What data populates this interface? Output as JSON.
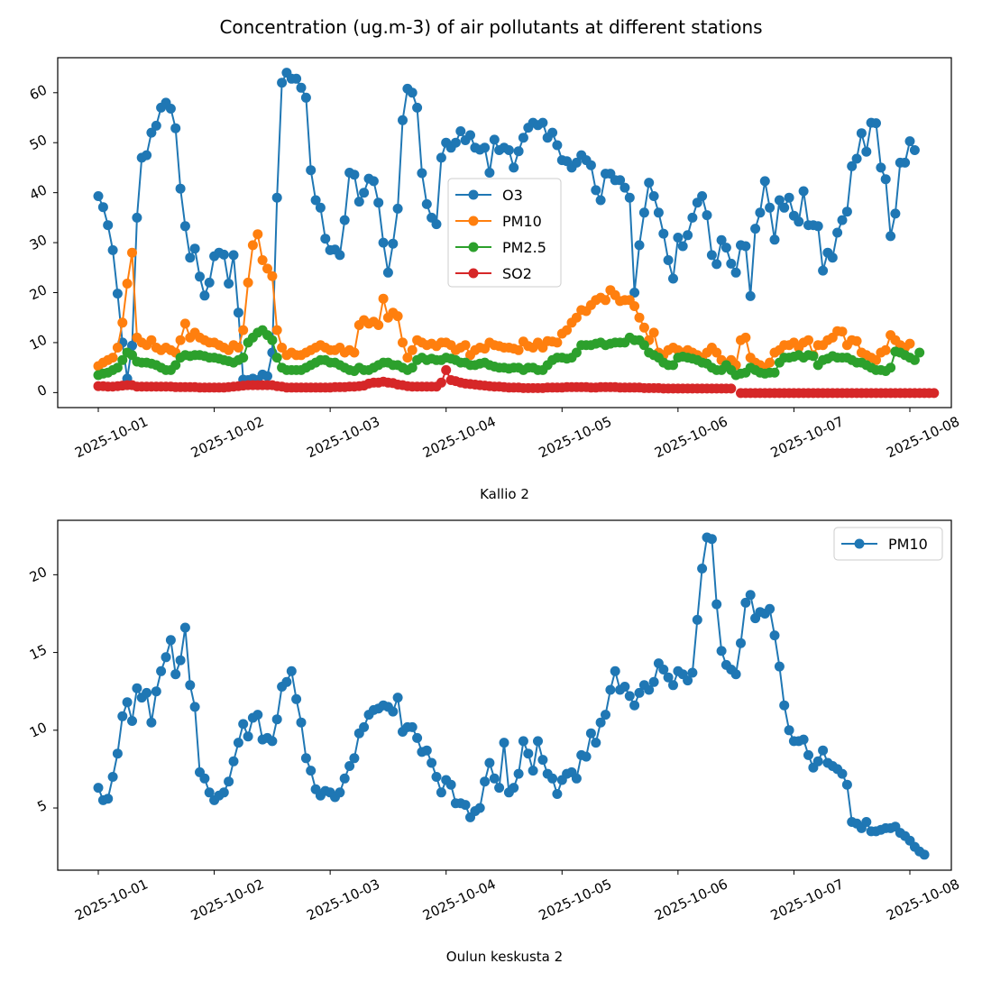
{
  "title": "Concentration (ug.m-3) of air pollutants at different stations",
  "chart_data": [
    {
      "type": "line",
      "xlabel": "Kallio 2",
      "ylabel": "",
      "x_start": "2025-10-01",
      "x_end": "2025-10-08",
      "x_ticks": [
        "2025-10-01",
        "2025-10-02",
        "2025-10-03",
        "2025-10-04",
        "2025-10-05",
        "2025-10-06",
        "2025-10-07",
        "2025-10-08"
      ],
      "y_ticks": [
        "0",
        "10",
        "20",
        "30",
        "40",
        "50",
        "60"
      ],
      "ylim": [
        -3,
        67
      ],
      "legend_position": "center",
      "series": [
        {
          "name": "O3",
          "color": "#1f77b4",
          "step_hours": 1,
          "values": [
            39.3,
            37.1,
            33.5,
            28.5,
            19.8,
            10.0,
            2.8,
            9.4,
            35.0,
            47.0,
            47.5,
            52.0,
            53.4,
            57.0,
            58.0,
            56.8,
            52.9,
            40.8,
            33.3,
            27.0,
            28.8,
            23.2,
            19.4,
            22.0,
            27.3,
            28.0,
            27.6,
            21.8,
            27.5,
            16.0,
            2.6,
            2.5,
            2.8,
            2.5,
            3.6,
            3.3,
            8.0,
            39.0,
            62.0,
            64.0,
            62.8,
            62.8,
            61.0,
            59.0,
            44.5,
            38.5,
            37.0,
            30.8,
            28.5,
            28.6,
            27.5,
            34.5,
            44.0,
            43.6,
            38.2,
            40.0,
            42.8,
            42.3,
            38.0,
            30.0,
            24.0,
            29.8,
            36.8,
            54.5,
            60.8,
            60.0,
            57.0,
            43.9,
            37.7,
            35.0,
            33.7,
            47.0,
            50.0,
            49.0,
            50.0,
            52.3,
            50.5,
            51.5,
            49.0,
            48.6,
            49.0,
            44.0,
            50.6,
            48.5,
            49.0,
            48.5,
            45.0,
            48.3,
            51.0,
            53.0,
            54.0,
            53.5,
            54.0,
            51.0,
            52.0,
            49.5,
            46.5,
            46.3,
            45.0,
            46.0,
            47.5,
            46.5,
            45.5,
            40.5,
            38.5,
            43.8,
            43.8,
            42.5,
            42.5,
            41.0,
            39.0,
            20.0,
            29.5,
            36.0,
            42.0,
            39.3,
            36.0,
            31.8,
            26.5,
            22.8,
            31.0,
            29.3,
            31.5,
            35.0,
            38.0,
            39.3,
            35.5,
            27.5,
            25.7,
            30.5,
            29.0,
            25.8,
            24.0,
            29.5,
            29.3,
            19.3,
            32.8,
            36.0,
            42.3,
            37.0,
            30.6,
            38.5,
            37.0,
            39.0,
            35.4,
            34.2,
            40.3,
            33.5,
            33.5,
            33.3,
            24.4,
            28.0,
            27.0,
            32.0,
            34.5,
            36.2,
            45.3,
            46.8,
            51.9,
            48.2,
            54.0,
            53.9,
            45.0,
            42.7,
            31.3,
            35.8,
            46.0,
            46.0,
            50.3,
            48.5
          ]
        },
        {
          "name": "PM10",
          "color": "#ff7f0e",
          "step_hours": 1,
          "values": [
            5.3,
            6.0,
            6.5,
            7.0,
            9.0,
            14.0,
            21.8,
            28.0,
            11.0,
            10.0,
            9.5,
            10.5,
            9.0,
            8.5,
            9.0,
            8.5,
            8.0,
            10.5,
            13.8,
            11.0,
            12.0,
            11.0,
            10.5,
            10.0,
            10.0,
            9.5,
            9.0,
            8.5,
            9.5,
            9.0,
            12.5,
            22.0,
            29.5,
            31.7,
            26.5,
            24.8,
            23.3,
            12.5,
            9.0,
            7.5,
            8.0,
            7.5,
            7.5,
            8.0,
            8.5,
            9.0,
            9.5,
            9.0,
            8.5,
            8.5,
            9.0,
            8.0,
            8.5,
            8.0,
            13.5,
            14.5,
            13.8,
            14.2,
            13.5,
            18.8,
            15.0,
            16.0,
            15.3,
            10.0,
            7.0,
            8.5,
            10.5,
            10.0,
            9.5,
            9.8,
            9.3,
            10.0,
            10.0,
            9.5,
            8.5,
            9.0,
            9.5,
            7.5,
            8.5,
            9.0,
            8.8,
            10.0,
            9.5,
            9.3,
            9.0,
            9.0,
            8.8,
            8.5,
            10.2,
            9.3,
            9.0,
            10.0,
            9.0,
            10.3,
            10.2,
            10.0,
            11.8,
            12.5,
            14.0,
            15.0,
            16.5,
            16.3,
            17.5,
            18.5,
            19.0,
            18.5,
            20.5,
            19.5,
            18.3,
            18.5,
            18.5,
            17.3,
            15.0,
            13.0,
            10.5,
            12.0,
            8.0,
            7.5,
            8.5,
            9.0,
            8.5,
            8.0,
            8.5,
            8.0,
            7.5,
            7.0,
            8.0,
            9.0,
            8.0,
            6.5,
            5.5,
            6.5,
            5.5,
            10.5,
            11.0,
            7.0,
            6.0,
            5.5,
            5.0,
            6.0,
            8.0,
            8.5,
            9.5,
            9.5,
            10.0,
            9.0,
            10.0,
            10.5,
            7.5,
            9.5,
            9.5,
            10.5,
            11.0,
            12.3,
            12.2,
            9.5,
            10.5,
            10.3,
            8.0,
            7.5,
            7.0,
            6.5,
            8.0,
            8.5,
            11.5,
            10.5,
            9.5,
            9.0,
            9.8
          ]
        },
        {
          "name": "PM2.5",
          "color": "#2ca02c",
          "step_hours": 1,
          "values": [
            3.5,
            3.8,
            4.0,
            4.5,
            5.0,
            6.5,
            8.0,
            7.5,
            6.2,
            6.0,
            6.0,
            5.8,
            5.5,
            5.0,
            4.5,
            4.5,
            5.5,
            7.0,
            7.5,
            7.3,
            7.5,
            7.5,
            7.3,
            7.0,
            7.0,
            6.8,
            6.5,
            6.3,
            6.0,
            6.5,
            7.0,
            10.0,
            11.0,
            12.0,
            12.5,
            11.5,
            10.5,
            7.0,
            5.0,
            4.5,
            4.5,
            4.5,
            4.5,
            5.0,
            5.5,
            6.0,
            6.5,
            6.5,
            6.0,
            6.0,
            5.5,
            5.0,
            4.5,
            4.3,
            5.0,
            4.5,
            4.5,
            5.0,
            5.5,
            6.0,
            6.0,
            5.5,
            5.5,
            5.0,
            4.5,
            5.0,
            6.5,
            7.0,
            6.5,
            6.8,
            6.5,
            6.5,
            7.0,
            6.8,
            6.5,
            6.0,
            6.0,
            5.5,
            5.5,
            5.8,
            6.0,
            5.5,
            5.2,
            5.0,
            5.0,
            4.8,
            5.0,
            5.0,
            4.5,
            5.0,
            5.0,
            4.5,
            4.5,
            5.5,
            6.5,
            7.0,
            7.0,
            6.8,
            7.0,
            8.0,
            9.5,
            9.5,
            9.5,
            9.8,
            10.0,
            9.5,
            9.8,
            10.0,
            10.0,
            10.0,
            11.0,
            10.5,
            10.5,
            9.5,
            8.0,
            7.5,
            7.0,
            6.0,
            5.5,
            5.5,
            7.0,
            7.2,
            7.0,
            6.8,
            6.5,
            6.0,
            5.8,
            5.0,
            4.5,
            4.5,
            5.5,
            4.5,
            3.5,
            3.8,
            4.0,
            5.0,
            4.5,
            4.0,
            3.8,
            4.0,
            4.0,
            6.0,
            7.0,
            7.0,
            7.2,
            7.5,
            7.0,
            7.5,
            7.3,
            5.5,
            6.5,
            6.8,
            7.3,
            7.0,
            7.0,
            7.0,
            6.5,
            6.0,
            6.0,
            5.5,
            5.0,
            4.5,
            4.5,
            4.3,
            5.0,
            8.2,
            8.0,
            7.5,
            7.0,
            6.5,
            8.0
          ]
        },
        {
          "name": "SO2",
          "color": "#d62728",
          "step_hours": 1,
          "values": [
            1.3,
            1.3,
            1.2,
            1.2,
            1.3,
            1.4,
            1.5,
            1.5,
            1.2,
            1.2,
            1.2,
            1.2,
            1.2,
            1.2,
            1.2,
            1.2,
            1.1,
            1.1,
            1.1,
            1.1,
            1.1,
            1.0,
            1.0,
            1.0,
            1.0,
            1.0,
            1.0,
            1.1,
            1.2,
            1.3,
            1.4,
            1.5,
            1.5,
            1.5,
            1.5,
            1.5,
            1.5,
            1.3,
            1.2,
            1.0,
            1.0,
            1.0,
            1.0,
            1.0,
            1.0,
            1.0,
            1.0,
            1.0,
            1.0,
            1.1,
            1.1,
            1.1,
            1.2,
            1.2,
            1.3,
            1.4,
            1.8,
            2.0,
            2.0,
            2.2,
            2.0,
            1.9,
            1.6,
            1.5,
            1.3,
            1.2,
            1.2,
            1.2,
            1.2,
            1.2,
            1.2,
            2.0,
            4.5,
            2.5,
            2.3,
            2.0,
            1.8,
            1.7,
            1.6,
            1.5,
            1.4,
            1.3,
            1.2,
            1.2,
            1.1,
            1.0,
            1.0,
            1.0,
            0.9,
            0.9,
            0.9,
            0.9,
            0.9,
            1.0,
            1.0,
            1.0,
            1.0,
            1.1,
            1.1,
            1.1,
            1.1,
            1.1,
            1.0,
            1.0,
            1.1,
            1.1,
            1.1,
            1.1,
            1.0,
            1.0,
            1.0,
            1.0,
            1.0,
            0.9,
            0.9,
            0.9,
            0.9,
            0.8,
            0.8,
            0.8,
            0.8,
            0.8,
            0.8,
            0.8,
            0.8,
            0.8,
            0.8,
            0.8,
            0.8,
            0.8,
            0.8,
            0.8,
            null,
            -0.1,
            -0.1,
            -0.1,
            -0.1,
            -0.1,
            -0.1,
            -0.1,
            -0.1,
            -0.1,
            -0.1,
            -0.1,
            -0.1,
            -0.1,
            -0.1,
            -0.1,
            -0.1,
            -0.1,
            -0.1,
            -0.1,
            -0.1,
            -0.1,
            -0.1,
            -0.1,
            -0.1,
            -0.1,
            -0.1,
            -0.1,
            -0.1,
            -0.1,
            -0.1,
            -0.1,
            -0.1,
            -0.1,
            -0.1,
            -0.1,
            -0.1,
            -0.1,
            -0.1,
            -0.1,
            -0.1,
            -0.1
          ]
        }
      ]
    },
    {
      "type": "line",
      "xlabel": "Oulun keskusta 2",
      "ylabel": "",
      "x_start": "2025-10-01",
      "x_end": "2025-10-08",
      "x_ticks": [
        "2025-10-01",
        "2025-10-02",
        "2025-10-03",
        "2025-10-04",
        "2025-10-05",
        "2025-10-06",
        "2025-10-07",
        "2025-10-08"
      ],
      "y_ticks": [
        "5",
        "10",
        "15",
        "20"
      ],
      "ylim": [
        1.0,
        23.5
      ],
      "legend_position": "top-right",
      "series": [
        {
          "name": "PM10",
          "color": "#1f77b4",
          "step_hours": 1,
          "values": [
            6.3,
            5.5,
            5.6,
            7.0,
            8.5,
            10.9,
            11.8,
            10.6,
            12.7,
            12.1,
            12.4,
            10.5,
            12.5,
            13.8,
            14.7,
            15.8,
            13.6,
            14.5,
            16.6,
            12.9,
            11.5,
            7.3,
            6.9,
            6.0,
            5.5,
            5.8,
            6.0,
            6.7,
            8.0,
            9.2,
            10.4,
            9.6,
            10.8,
            11.0,
            9.4,
            9.5,
            9.3,
            10.7,
            12.8,
            13.1,
            13.8,
            12.0,
            10.5,
            8.2,
            7.4,
            6.2,
            5.8,
            6.1,
            6.0,
            5.7,
            6.0,
            6.9,
            7.7,
            8.2,
            9.8,
            10.2,
            11.0,
            11.3,
            11.4,
            11.6,
            11.5,
            11.2,
            12.1,
            9.9,
            10.2,
            10.2,
            9.5,
            8.6,
            8.7,
            7.9,
            7.0,
            6.0,
            6.8,
            6.5,
            5.3,
            5.3,
            5.2,
            4.4,
            4.8,
            5.0,
            6.7,
            7.9,
            6.9,
            6.3,
            9.2,
            6.0,
            6.3,
            7.2,
            9.3,
            8.5,
            7.4,
            9.3,
            8.1,
            7.2,
            6.9,
            5.9,
            6.8,
            7.2,
            7.3,
            6.9,
            8.4,
            8.3,
            9.8,
            9.2,
            10.5,
            11.0,
            12.6,
            13.8,
            12.6,
            12.8,
            12.2,
            11.6,
            12.4,
            12.9,
            12.6,
            13.1,
            14.3,
            13.9,
            13.4,
            12.9,
            13.8,
            13.6,
            13.2,
            13.7,
            17.1,
            20.4,
            22.4,
            22.3,
            18.1,
            15.1,
            14.2,
            13.9,
            13.6,
            15.6,
            18.2,
            18.7,
            17.2,
            17.6,
            17.5,
            17.8,
            16.1,
            14.1,
            11.6,
            10.0,
            9.3,
            9.3,
            9.4,
            8.4,
            7.6,
            8.0,
            8.7,
            7.9,
            7.7,
            7.5,
            7.2,
            6.5,
            4.1,
            4.0,
            3.7,
            4.1,
            3.5,
            3.5,
            3.6,
            3.7,
            3.7,
            3.8,
            3.4,
            3.2,
            2.9,
            2.5,
            2.2,
            2.0
          ]
        }
      ]
    }
  ]
}
